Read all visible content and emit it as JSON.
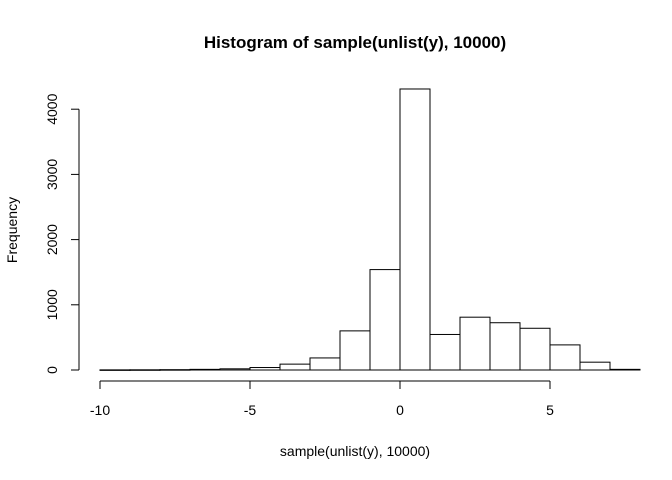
{
  "chart_data": {
    "type": "bar",
    "title": "Histogram of sample(unlist(y), 10000)",
    "xlabel": "sample(unlist(y), 10000)",
    "ylabel": "Frequency",
    "xlim": [
      -10,
      7
    ],
    "ylim": [
      0,
      4300
    ],
    "x_ticks": [
      -10,
      -5,
      0,
      5
    ],
    "y_ticks": [
      0,
      1000,
      2000,
      3000,
      4000
    ],
    "grid": false,
    "legend": "none",
    "bins": [
      {
        "x0": -10,
        "x1": -9,
        "count": 2
      },
      {
        "x0": -9,
        "x1": -8,
        "count": 3
      },
      {
        "x0": -8,
        "x1": -7,
        "count": 5
      },
      {
        "x0": -7,
        "x1": -6,
        "count": 10
      },
      {
        "x0": -6,
        "x1": -5,
        "count": 18
      },
      {
        "x0": -5,
        "x1": -4,
        "count": 38
      },
      {
        "x0": -4,
        "x1": -3,
        "count": 90
      },
      {
        "x0": -3,
        "x1": -2,
        "count": 185
      },
      {
        "x0": -2,
        "x1": -1,
        "count": 600
      },
      {
        "x0": -1,
        "x1": 0,
        "count": 1540
      },
      {
        "x0": 0,
        "x1": 1,
        "count": 4310
      },
      {
        "x0": 1,
        "x1": 2,
        "count": 545
      },
      {
        "x0": 2,
        "x1": 3,
        "count": 810
      },
      {
        "x0": 3,
        "x1": 4,
        "count": 725
      },
      {
        "x0": 4,
        "x1": 5,
        "count": 640
      },
      {
        "x0": 5,
        "x1": 6,
        "count": 385
      },
      {
        "x0": 6,
        "x1": 7,
        "count": 120
      },
      {
        "x0": 7,
        "x1": 8,
        "count": 10
      }
    ],
    "colors": {
      "bar_fill": "#ffffff",
      "bar_stroke": "#000000"
    }
  }
}
